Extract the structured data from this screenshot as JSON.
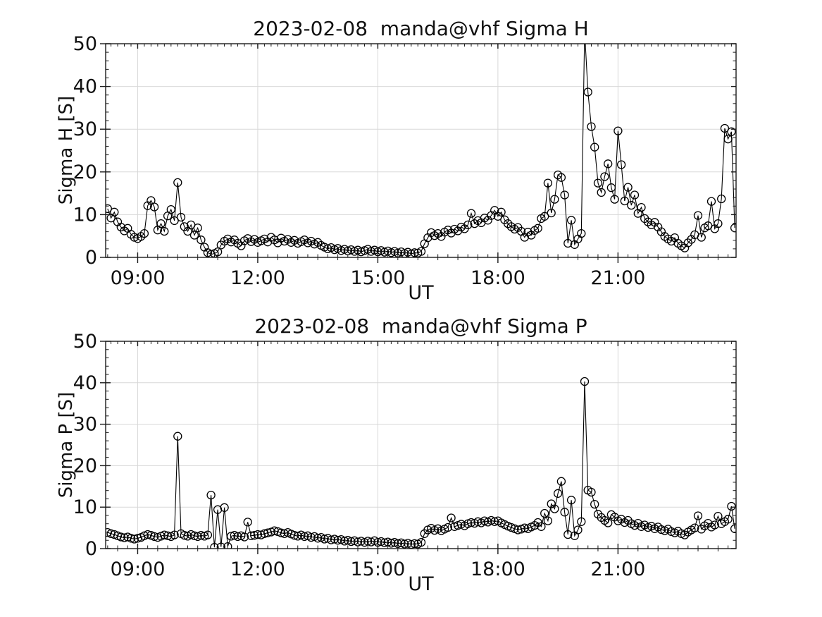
{
  "figure": {
    "background": "#ffffff",
    "text_color": "#111111"
  },
  "chart_data": [
    {
      "type": "line",
      "title": "2023-02-08  manda@vhf Sigma H",
      "xlabel": "UT",
      "ylabel": "Sigma H [S]",
      "xlim": [
        8.2,
        23.95
      ],
      "ylim": [
        0,
        50
      ],
      "yticks": [
        0,
        10,
        20,
        30,
        40,
        50
      ],
      "xtick_values": [
        9,
        12,
        15,
        18,
        21
      ],
      "xtick_labels": [
        "09:00",
        "12:00",
        "15:00",
        "18:00",
        "21:00"
      ],
      "grid": true,
      "legend": "none",
      "marker": "open-circle",
      "line_color": "#000000",
      "grid_color": "#d8d8d8",
      "spine_color": "#1a1a1a",
      "series": [
        {
          "name": "Sigma H",
          "t_start_hours": 8.25,
          "dt_minutes": 5,
          "values": [
            11.4,
            9.2,
            10.6,
            8.3,
            7.1,
            6.2,
            6.8,
            5.4,
            4.7,
            4.4,
            4.9,
            5.6,
            12.1,
            13.3,
            11.8,
            6.4,
            7.9,
            6.1,
            9.7,
            11.2,
            8.6,
            17.5,
            9.4,
            7.2,
            6.1,
            7.6,
            5.2,
            6.9,
            4.1,
            2.4,
            1.1,
            0.7,
            0.9,
            1.3,
            2.9,
            3.8,
            4.3,
            3.6,
            4.1,
            3.3,
            2.7,
            3.9,
            4.4,
            3.7,
            4.2,
            3.5,
            3.9,
            4.3,
            3.6,
            4.7,
            4.1,
            3.4,
            4.5,
            3.8,
            4.2,
            3.5,
            4.0,
            3.3,
            3.7,
            4.1,
            3.4,
            3.8,
            3.1,
            3.5,
            2.8,
            2.4,
            2.0,
            2.3,
            1.8,
            2.1,
            1.6,
            1.9,
            1.5,
            1.8,
            1.4,
            1.7,
            1.3,
            1.6,
            1.9,
            1.4,
            1.7,
            1.3,
            1.6,
            1.2,
            1.5,
            1.1,
            1.4,
            1.0,
            1.3,
            0.9,
            1.2,
            0.8,
            1.1,
            1.0,
            1.4,
            3.2,
            4.6,
            5.8,
            5.1,
            5.6,
            4.9,
            5.9,
            6.4,
            5.7,
            6.6,
            6.2,
            7.1,
            6.7,
            7.6,
            10.3,
            7.9,
            8.6,
            8.1,
            9.2,
            8.7,
            9.8,
            11.0,
            9.6,
            10.6,
            8.8,
            7.9,
            7.2,
            6.6,
            7.0,
            6.1,
            4.7,
            5.9,
            5.2,
            6.3,
            6.8,
            9.1,
            9.6,
            17.4,
            10.4,
            13.6,
            19.3,
            18.7,
            14.6,
            3.3,
            8.7,
            3.0,
            4.3,
            5.6,
            53.0,
            38.7,
            30.6,
            25.8,
            17.4,
            15.2,
            18.9,
            21.9,
            16.3,
            13.6,
            29.6,
            21.7,
            13.2,
            16.4,
            12.2,
            14.6,
            10.3,
            11.7,
            9.1,
            8.3,
            7.6,
            8.2,
            7.1,
            6.0,
            4.9,
            4.3,
            3.8,
            4.6,
            3.3,
            2.7,
            2.2,
            3.4,
            4.2,
            5.3,
            9.8,
            4.7,
            6.9,
            7.4,
            13.1,
            6.7,
            7.9,
            13.7,
            30.2,
            27.7,
            29.4,
            6.9
          ]
        }
      ]
    },
    {
      "type": "line",
      "title": "2023-02-08  manda@vhf Sigma P",
      "xlabel": "UT",
      "ylabel": "Sigma P [S]",
      "xlim": [
        8.2,
        23.95
      ],
      "ylim": [
        0,
        50
      ],
      "yticks": [
        0,
        10,
        20,
        30,
        40,
        50
      ],
      "xtick_values": [
        9,
        12,
        15,
        18,
        21
      ],
      "xtick_labels": [
        "09:00",
        "12:00",
        "15:00",
        "18:00",
        "21:00"
      ],
      "grid": true,
      "legend": "none",
      "marker": "open-circle",
      "line_color": "#000000",
      "grid_color": "#d8d8d8",
      "spine_color": "#1a1a1a",
      "series": [
        {
          "name": "Sigma P",
          "t_start_hours": 8.25,
          "dt_minutes": 5,
          "values": [
            3.9,
            3.6,
            3.4,
            3.1,
            2.8,
            2.6,
            2.8,
            2.5,
            2.3,
            2.5,
            2.7,
            3.1,
            3.4,
            3.2,
            2.9,
            2.7,
            3.0,
            3.3,
            3.1,
            2.9,
            3.3,
            27.1,
            3.6,
            3.2,
            3.0,
            3.4,
            3.1,
            2.9,
            3.2,
            3.0,
            3.3,
            12.9,
            0.3,
            9.4,
            0.4,
            9.9,
            0.5,
            3.0,
            3.2,
            2.9,
            3.1,
            2.8,
            6.4,
            3.1,
            3.2,
            3.4,
            3.3,
            3.6,
            3.8,
            4.0,
            4.3,
            4.1,
            3.8,
            3.6,
            3.9,
            3.5,
            3.2,
            3.0,
            3.3,
            2.9,
            3.1,
            2.7,
            2.9,
            2.5,
            2.7,
            2.3,
            2.5,
            2.1,
            2.3,
            2.0,
            2.2,
            1.8,
            2.0,
            1.7,
            1.9,
            1.6,
            1.8,
            1.5,
            1.8,
            1.6,
            1.9,
            1.5,
            1.7,
            1.4,
            1.6,
            1.3,
            1.5,
            1.2,
            1.4,
            1.1,
            1.3,
            1.0,
            1.2,
            1.1,
            1.5,
            3.6,
            4.5,
            4.9,
            4.4,
            4.8,
            4.3,
            4.7,
            5.1,
            7.4,
            5.3,
            5.6,
            5.9,
            5.5,
            6.0,
            6.3,
            6.1,
            6.5,
            6.2,
            6.7,
            6.4,
            6.8,
            6.5,
            6.7,
            6.2,
            5.8,
            5.4,
            5.1,
            4.8,
            4.5,
            4.7,
            5.0,
            4.8,
            5.2,
            5.6,
            6.3,
            5.3,
            8.5,
            6.7,
            10.8,
            9.6,
            13.3,
            16.2,
            8.8,
            3.4,
            11.7,
            3.1,
            4.5,
            6.5,
            40.3,
            14.1,
            13.6,
            10.7,
            8.3,
            7.5,
            6.8,
            6.2,
            8.2,
            7.6,
            6.7,
            7.1,
            6.3,
            6.8,
            6.0,
            5.6,
            6.1,
            5.3,
            5.7,
            5.1,
            5.4,
            4.8,
            5.2,
            4.6,
            4.3,
            4.7,
            4.1,
            3.8,
            4.2,
            3.6,
            3.3,
            4.0,
            4.5,
            5.0,
            7.9,
            4.7,
            5.5,
            6.1,
            5.2,
            5.7,
            7.8,
            6.0,
            6.5,
            7.1,
            10.2,
            4.8
          ]
        }
      ]
    }
  ]
}
